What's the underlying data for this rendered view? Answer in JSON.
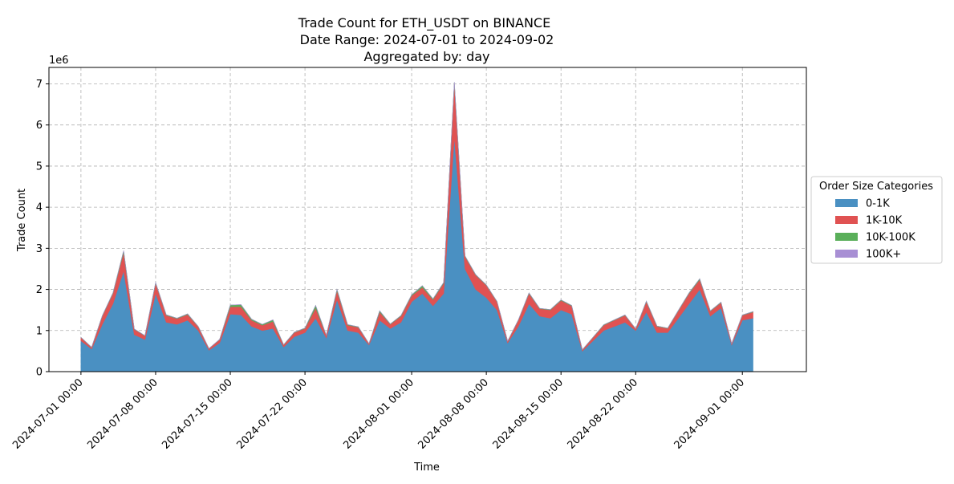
{
  "chart_data": {
    "type": "area",
    "stacked": true,
    "title_lines": [
      "Trade Count for ETH_USDT on BINANCE",
      "Date Range: 2024-07-01 to 2024-09-02",
      "Aggregated by: day"
    ],
    "xlabel": "Time",
    "ylabel": "Trade Count",
    "y_offset_label": "1e6",
    "y_scale": 1000000,
    "ylim": [
      0,
      7400000
    ],
    "yticks": [
      0,
      1,
      2,
      3,
      4,
      5,
      6,
      7
    ],
    "x_start": "2024-07-01",
    "x_end": "2024-09-02",
    "xlim": [
      "2024-06-28",
      "2024-09-07"
    ],
    "xtick_dates": [
      "2024-07-01",
      "2024-07-08",
      "2024-07-15",
      "2024-07-22",
      "2024-08-01",
      "2024-08-08",
      "2024-08-15",
      "2024-08-22",
      "2024-09-01"
    ],
    "xtick_labels": [
      "2024-07-01 00:00",
      "2024-07-08 00:00",
      "2024-07-15 00:00",
      "2024-07-22 00:00",
      "2024-08-01 00:00",
      "2024-08-08 00:00",
      "2024-08-15 00:00",
      "2024-08-22 00:00",
      "2024-09-01 00:00"
    ],
    "grid": true,
    "legend": {
      "title": "Order Size Categories",
      "placement": "outside-right"
    },
    "series": [
      {
        "name": "0-1K",
        "color": "#4a90c2",
        "values": [
          750000,
          550000,
          1150000,
          1650000,
          2450000,
          900000,
          780000,
          1900000,
          1200000,
          1150000,
          1250000,
          1000000,
          520000,
          700000,
          1400000,
          1380000,
          1100000,
          1000000,
          1050000,
          600000,
          850000,
          950000,
          1300000,
          820000,
          1750000,
          1000000,
          950000,
          650000,
          1250000,
          1050000,
          1200000,
          1700000,
          1900000,
          1600000,
          1900000,
          5700000,
          2500000,
          2000000,
          1800000,
          1500000,
          700000,
          1100000,
          1650000,
          1350000,
          1300000,
          1500000,
          1400000,
          500000,
          750000,
          1000000,
          1100000,
          1200000,
          1000000,
          1450000,
          950000,
          950000,
          1300000,
          1650000,
          2000000,
          1350000,
          1550000,
          650000,
          1250000,
          1300000
        ]
      },
      {
        "name": "1K-10K",
        "color": "#e05252",
        "values": [
          80000,
          40000,
          200000,
          250000,
          450000,
          130000,
          90000,
          250000,
          170000,
          140000,
          140000,
          90000,
          40000,
          80000,
          180000,
          200000,
          150000,
          130000,
          170000,
          50000,
          100000,
          100000,
          250000,
          60000,
          220000,
          130000,
          130000,
          30000,
          200000,
          100000,
          150000,
          150000,
          150000,
          150000,
          250000,
          1300000,
          300000,
          350000,
          300000,
          200000,
          40000,
          150000,
          250000,
          180000,
          200000,
          230000,
          200000,
          30000,
          80000,
          130000,
          150000,
          170000,
          40000,
          250000,
          150000,
          100000,
          180000,
          250000,
          240000,
          120000,
          130000,
          30000,
          120000,
          150000
        ]
      },
      {
        "name": "10K-100K",
        "color": "#5aaf5a",
        "values": [
          5000,
          3000,
          10000,
          15000,
          40000,
          8000,
          5000,
          15000,
          12000,
          10000,
          15000,
          8000,
          3000,
          5000,
          40000,
          50000,
          25000,
          20000,
          40000,
          5000,
          10000,
          10000,
          60000,
          5000,
          30000,
          15000,
          10000,
          3000,
          30000,
          10000,
          15000,
          20000,
          40000,
          20000,
          20000,
          40000,
          15000,
          12000,
          10000,
          8000,
          3000,
          8000,
          15000,
          10000,
          10000,
          15000,
          10000,
          3000,
          5000,
          10000,
          10000,
          10000,
          4000,
          15000,
          10000,
          8000,
          10000,
          15000,
          20000,
          10000,
          10000,
          3000,
          8000,
          10000
        ]
      },
      {
        "name": "100K+",
        "color": "#a88fd4",
        "values": [
          500,
          300,
          800,
          1000,
          2000,
          500,
          400,
          1000,
          800,
          700,
          800,
          500,
          200,
          400,
          1000,
          1000,
          800,
          700,
          800,
          300,
          500,
          500,
          1200,
          400,
          1200,
          700,
          600,
          200,
          1000,
          600,
          800,
          1000,
          1200,
          900,
          1000,
          2500,
          1000,
          900,
          800,
          700,
          200,
          500,
          900,
          700,
          700,
          800,
          700,
          200,
          400,
          600,
          700,
          700,
          300,
          900,
          600,
          500,
          700,
          900,
          1000,
          600,
          700,
          200,
          500,
          600
        ]
      }
    ]
  }
}
